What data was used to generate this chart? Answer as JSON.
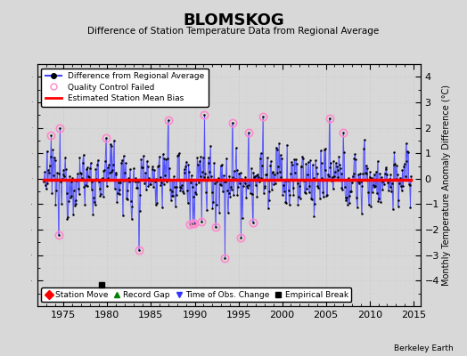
{
  "title": "BLOMSKOG",
  "subtitle": "Difference of Station Temperature Data from Regional Average",
  "ylabel": "Monthly Temperature Anomaly Difference (°C)",
  "xlim": [
    1972.0,
    2015.8
  ],
  "ylim": [
    -5.0,
    4.5
  ],
  "yticks": [
    -4,
    -3,
    -2,
    -1,
    0,
    1,
    2,
    3,
    4
  ],
  "xticks": [
    1975,
    1980,
    1985,
    1990,
    1995,
    2000,
    2005,
    2010,
    2015
  ],
  "background_color": "#d8d8d8",
  "plot_bg_color": "#d8d8d8",
  "line_color": "#4444ff",
  "bias_line_color": "#ff0000",
  "bias_value": -0.05,
  "marker_color": "#000000",
  "qc_marker_color": "#ff88cc",
  "legend1_entries": [
    "Difference from Regional Average",
    "Quality Control Failed",
    "Estimated Station Mean Bias"
  ],
  "legend2_entries": [
    "Station Move",
    "Record Gap",
    "Time of Obs. Change",
    "Empirical Break"
  ],
  "empirical_break_x": 1979.3,
  "empirical_break_y": -4.15,
  "seed": 42
}
